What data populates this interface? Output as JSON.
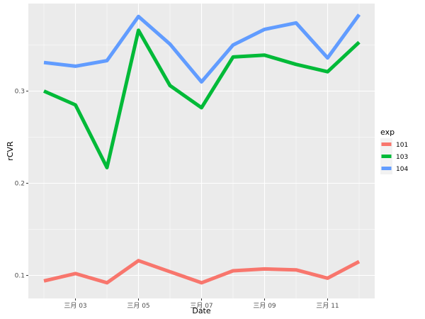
{
  "chart_data": {
    "type": "line",
    "title": "",
    "xlabel": "Date",
    "ylabel": "rCVR",
    "x": [
      "三月 02",
      "三月 03",
      "三月 04",
      "三月 05",
      "三月 06",
      "三月 07",
      "三月 08",
      "三月 09",
      "三月 10",
      "三月 11",
      "三月 12"
    ],
    "x_tick_labels": [
      "三月 03",
      "三月 05",
      "三月 07",
      "三月 09",
      "三月 11"
    ],
    "y_ticks": [
      0.1,
      0.2,
      0.3
    ],
    "y_tick_labels": [
      "0.1",
      "0.2",
      "0.3"
    ],
    "ylim": [
      0.075,
      0.395
    ],
    "grid": true,
    "legend": {
      "title": "exp",
      "position": "right"
    },
    "series": [
      {
        "name": "101",
        "color": "#F8766D",
        "values": [
          0.094,
          0.102,
          0.092,
          0.116,
          0.104,
          0.092,
          0.105,
          0.107,
          0.106,
          0.097,
          0.115
        ]
      },
      {
        "name": "103",
        "color": "#00BA38",
        "values": [
          0.3,
          0.285,
          0.217,
          0.366,
          0.306,
          0.282,
          0.337,
          0.339,
          0.329,
          0.321,
          0.353
        ]
      },
      {
        "name": "104",
        "color": "#619CFF",
        "values": [
          0.331,
          0.327,
          0.333,
          0.381,
          0.351,
          0.31,
          0.35,
          0.367,
          0.374,
          0.336,
          0.383
        ]
      }
    ]
  }
}
